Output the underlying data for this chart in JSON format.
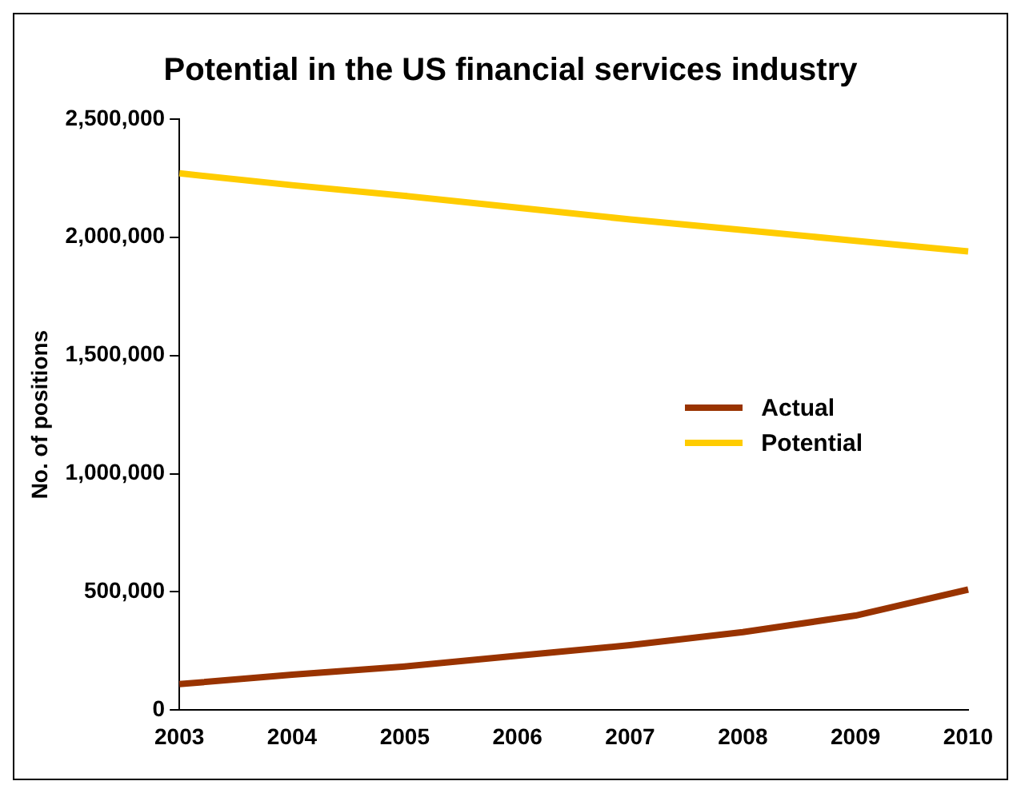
{
  "chart_data": {
    "type": "line",
    "title": "Potential in the US financial services industry",
    "ylabel": "No. of positions",
    "categories": [
      "2003",
      "2004",
      "2005",
      "2006",
      "2007",
      "2008",
      "2009",
      "2010"
    ],
    "series": [
      {
        "name": "Actual",
        "color": "#993300",
        "values": [
          110000,
          150000,
          185000,
          230000,
          275000,
          330000,
          400000,
          510000
        ]
      },
      {
        "name": "Potential",
        "color": "#ffcc00",
        "values": [
          2270000,
          2220000,
          2175000,
          2125000,
          2075000,
          2030000,
          1985000,
          1940000
        ]
      }
    ],
    "ylim": [
      0,
      2500000
    ],
    "yticks": [
      {
        "value": 0,
        "label": "0"
      },
      {
        "value": 500000,
        "label": "500,000"
      },
      {
        "value": 1000000,
        "label": "1,000,000"
      },
      {
        "value": 1500000,
        "label": "1,500,000"
      },
      {
        "value": 2000000,
        "label": "2,000,000"
      },
      {
        "value": 2500000,
        "label": "2,500,000"
      }
    ],
    "grid": false,
    "legend": "right",
    "marker": "none",
    "line_style": "solid"
  }
}
